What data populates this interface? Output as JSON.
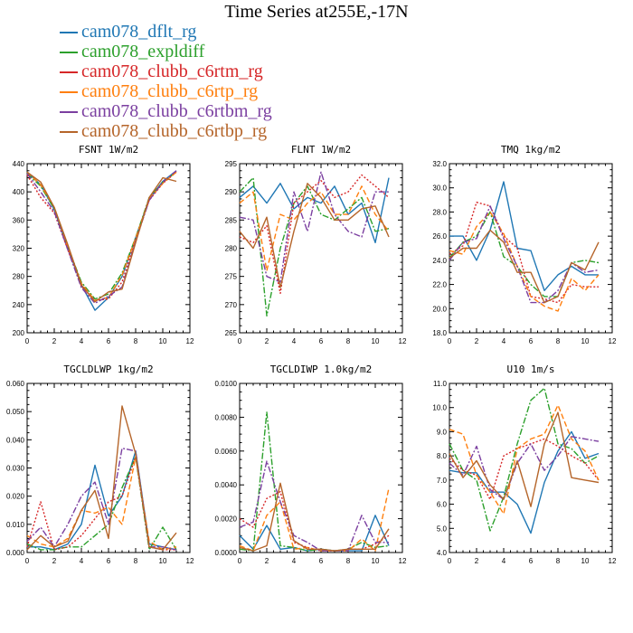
{
  "title": "Time Series at255E,-17N",
  "legend": [
    {
      "name": "cam078_dflt_rg",
      "color": "#1f77b4",
      "dash": "solid"
    },
    {
      "name": "cam078_expldiff",
      "color": "#2ca02c",
      "dash": "dashdot"
    },
    {
      "name": "cam078_clubb_c6rtm_rg",
      "color": "#d62728",
      "dash": "dot"
    },
    {
      "name": "cam078_clubb_c6rtp_rg",
      "color": "#ff7f0e",
      "dash": "dash"
    },
    {
      "name": "cam078_clubb_c6rtbm_rg",
      "color": "#7b3fa0",
      "dash": "dashdot"
    },
    {
      "name": "cam078_clubb_c6rtbp_rg",
      "color": "#b5652a",
      "dash": "solid"
    }
  ],
  "chart_data": [
    {
      "type": "line",
      "title": "FSNT   1W/m2",
      "xlim": [
        0,
        12
      ],
      "ylim": [
        200,
        440
      ],
      "xticks": [
        "0",
        "2",
        "4",
        "6",
        "8",
        "10",
        "12"
      ],
      "yticks": [
        "200",
        "240",
        "280",
        "320",
        "360",
        "400",
        "440"
      ],
      "x": [
        0,
        1,
        2,
        3,
        4,
        5,
        6,
        7,
        8,
        9,
        10,
        11
      ],
      "series": [
        {
          "name": "cam078_dflt_rg",
          "values": [
            428,
            410,
            375,
            320,
            268,
            232,
            250,
            280,
            335,
            390,
            415,
            430
          ]
        },
        {
          "name": "cam078_expldiff",
          "values": [
            426,
            408,
            376,
            322,
            272,
            248,
            255,
            285,
            335,
            392,
            414,
            428
          ]
        },
        {
          "name": "cam078_clubb_c6rtm_rg",
          "values": [
            424,
            392,
            370,
            318,
            266,
            246,
            248,
            272,
            332,
            388,
            412,
            428
          ]
        },
        {
          "name": "cam078_clubb_c6rtp_rg",
          "values": [
            428,
            410,
            378,
            322,
            270,
            246,
            250,
            282,
            334,
            390,
            412,
            428
          ]
        },
        {
          "name": "cam078_clubb_c6rtbm_rg",
          "values": [
            426,
            400,
            372,
            318,
            264,
            242,
            252,
            265,
            330,
            388,
            414,
            430
          ]
        },
        {
          "name": "cam078_clubb_c6rtbp_rg",
          "values": [
            428,
            414,
            378,
            325,
            268,
            244,
            258,
            262,
            328,
            392,
            420,
            415
          ]
        }
      ]
    },
    {
      "type": "line",
      "title": "FLNT   1W/m2",
      "xlim": [
        0,
        12
      ],
      "ylim": [
        265,
        295
      ],
      "xticks": [
        "0",
        "2",
        "4",
        "6",
        "8",
        "10",
        "12"
      ],
      "yticks": [
        "265",
        "270",
        "275",
        "280",
        "285",
        "290",
        "295"
      ],
      "x": [
        0,
        1,
        2,
        3,
        4,
        5,
        6,
        7,
        8,
        9,
        10,
        11
      ],
      "series": [
        {
          "name": "cam078_dflt_rg",
          "values": [
            289,
            291,
            288,
            291.5,
            287,
            289,
            288,
            291,
            286,
            288,
            281,
            292.5
          ]
        },
        {
          "name": "cam078_expldiff",
          "values": [
            290,
            292.5,
            268,
            280,
            288,
            291,
            286,
            285,
            287,
            289,
            283,
            283.5
          ]
        },
        {
          "name": "cam078_clubb_c6rtm_rg",
          "values": [
            282,
            281,
            284,
            272,
            288,
            290,
            292,
            289,
            290,
            293,
            291,
            289
          ]
        },
        {
          "name": "cam078_clubb_c6rtp_rg",
          "values": [
            288,
            290,
            276,
            286,
            285,
            288,
            290,
            286,
            286,
            291,
            286,
            283
          ]
        },
        {
          "name": "cam078_clubb_c6rtbm_rg",
          "values": [
            285.5,
            285,
            275,
            274,
            290,
            283,
            293.5,
            286,
            283,
            282,
            290,
            290
          ]
        },
        {
          "name": "cam078_clubb_c6rtbp_rg",
          "values": [
            283,
            280,
            285.5,
            273,
            283,
            291.5,
            289,
            285,
            285,
            287,
            287.5,
            282
          ]
        }
      ]
    },
    {
      "type": "line",
      "title": "TMQ   1kg/m2",
      "xlim": [
        0,
        12
      ],
      "ylim": [
        18.0,
        32.0
      ],
      "xticks": [
        "0",
        "2",
        "4",
        "6",
        "8",
        "10",
        "12"
      ],
      "yticks": [
        "18.0",
        "20.0",
        "22.0",
        "24.0",
        "26.0",
        "28.0",
        "30.0",
        "32.0"
      ],
      "x": [
        0,
        1,
        2,
        3,
        4,
        5,
        6,
        7,
        8,
        9,
        10,
        11
      ],
      "series": [
        {
          "name": "cam078_dflt_rg",
          "values": [
            26.0,
            26.0,
            24.0,
            26.5,
            30.5,
            25.0,
            24.8,
            21.5,
            22.8,
            23.5,
            22.8,
            22.8
          ]
        },
        {
          "name": "cam078_expldiff",
          "values": [
            24.2,
            25.5,
            26.0,
            28.0,
            24.3,
            23.5,
            22.0,
            21.0,
            21.0,
            23.8,
            24.0,
            23.8
          ]
        },
        {
          "name": "cam078_clubb_c6rtm_rg",
          "values": [
            24.5,
            25.2,
            28.8,
            28.5,
            26.0,
            25.0,
            21.0,
            20.8,
            20.5,
            22.0,
            21.8,
            21.8
          ]
        },
        {
          "name": "cam078_clubb_c6rtp_rg",
          "values": [
            24.8,
            24.5,
            26.8,
            28.0,
            26.2,
            23.5,
            21.0,
            20.2,
            19.8,
            22.5,
            21.5,
            22.8
          ]
        },
        {
          "name": "cam078_clubb_c6rtbm_rg",
          "values": [
            24.0,
            25.5,
            25.8,
            28.5,
            25.8,
            23.5,
            20.5,
            20.5,
            21.5,
            23.8,
            23.0,
            23.2
          ]
        },
        {
          "name": "cam078_clubb_c6rtbp_rg",
          "values": [
            24.2,
            25.0,
            25.0,
            26.5,
            25.5,
            23.0,
            23.0,
            20.5,
            21.0,
            23.8,
            23.2,
            25.5
          ]
        }
      ]
    },
    {
      "type": "line",
      "title": "TGCLDLWP   1kg/m2",
      "xlim": [
        0,
        12
      ],
      "ylim": [
        0.0,
        0.06
      ],
      "xticks": [
        "0",
        "2",
        "4",
        "6",
        "8",
        "10",
        "12"
      ],
      "yticks": [
        "0.000",
        "0.010",
        "0.020",
        "0.030",
        "0.040",
        "0.050",
        "0.060"
      ],
      "x": [
        0,
        1,
        2,
        3,
        4,
        5,
        6,
        7,
        8,
        9,
        10,
        11
      ],
      "series": [
        {
          "name": "cam078_dflt_rg",
          "values": [
            0.002,
            0.002,
            0.001,
            0.003,
            0.01,
            0.031,
            0.013,
            0.02,
            0.036,
            0.003,
            0.002,
            0.001
          ]
        },
        {
          "name": "cam078_expldiff",
          "values": [
            0.003,
            0.001,
            0.001,
            0.002,
            0.002,
            0.006,
            0.01,
            0.023,
            0.034,
            0.001,
            0.009,
            0.001
          ]
        },
        {
          "name": "cam078_clubb_c6rtm_rg",
          "values": [
            0.002,
            0.018,
            0.001,
            0.002,
            0.006,
            0.012,
            0.018,
            0.02,
            0.034,
            0.002,
            0.001,
            0.001
          ]
        },
        {
          "name": "cam078_clubb_c6rtp_rg",
          "values": [
            0.006,
            0.003,
            0.002,
            0.005,
            0.015,
            0.014,
            0.016,
            0.01,
            0.034,
            0.004,
            0.001,
            0.002
          ]
        },
        {
          "name": "cam078_clubb_c6rtbm_rg",
          "values": [
            0.004,
            0.009,
            0.002,
            0.01,
            0.02,
            0.025,
            0.01,
            0.037,
            0.036,
            0.002,
            0.002,
            0.001
          ]
        },
        {
          "name": "cam078_clubb_c6rtbp_rg",
          "values": [
            0.001,
            0.006,
            0.002,
            0.004,
            0.015,
            0.022,
            0.005,
            0.052,
            0.035,
            0.002,
            0.001,
            0.007
          ]
        }
      ]
    },
    {
      "type": "line",
      "title": "TGCLDIWP   1.0kg/m2",
      "xlim": [
        0,
        12
      ],
      "ylim": [
        0.0,
        0.01
      ],
      "xticks": [
        "0",
        "2",
        "4",
        "6",
        "8",
        "10",
        "12"
      ],
      "yticks": [
        "0.0000",
        "0.0020",
        "0.0040",
        "0.0060",
        "0.0080",
        "0.0100"
      ],
      "x": [
        0,
        1,
        2,
        3,
        4,
        5,
        6,
        7,
        8,
        9,
        10,
        11
      ],
      "series": [
        {
          "name": "cam078_dflt_rg",
          "values": [
            0.001,
            0.0002,
            0.0016,
            0.0002,
            0.0003,
            0.0001,
            0.0002,
            0.0001,
            0.0001,
            0.0001,
            0.0022,
            0.0004
          ]
        },
        {
          "name": "cam078_expldiff",
          "values": [
            0.0002,
            0.0001,
            0.0083,
            0.0004,
            0.0003,
            0.0001,
            0.0002,
            0.0001,
            0.0002,
            0.0006,
            0.0003,
            0.0004
          ]
        },
        {
          "name": "cam078_clubb_c6rtm_rg",
          "values": [
            0.002,
            0.0015,
            0.0032,
            0.0036,
            0.0006,
            0.0003,
            0.0001,
            0.0001,
            0.0002,
            0.0002,
            0.0005,
            0.001
          ]
        },
        {
          "name": "cam078_clubb_c6rtp_rg",
          "values": [
            0.0004,
            0.0001,
            0.0022,
            0.003,
            0.0002,
            0.0003,
            0.0001,
            0.0001,
            0.0001,
            0.0008,
            0.0001,
            0.0038
          ]
        },
        {
          "name": "cam078_clubb_c6rtbm_rg",
          "values": [
            0.0015,
            0.0018,
            0.0054,
            0.003,
            0.001,
            0.0006,
            0.0001,
            0.0001,
            0.0001,
            0.0022,
            0.0006,
            0.0006
          ]
        },
        {
          "name": "cam078_clubb_c6rtbp_rg",
          "values": [
            0.0003,
            0.0001,
            0.0004,
            0.0041,
            0.0007,
            0.0002,
            0.0002,
            0.0001,
            0.0002,
            0.0002,
            0.0002,
            0.0014
          ]
        }
      ]
    },
    {
      "type": "line",
      "title": "U10   1m/s",
      "xlim": [
        0,
        12
      ],
      "ylim": [
        4.0,
        11.0
      ],
      "xticks": [
        "0",
        "2",
        "4",
        "6",
        "8",
        "10",
        "12"
      ],
      "yticks": [
        "4.0",
        "5.0",
        "6.0",
        "7.0",
        "8.0",
        "9.0",
        "10.0",
        "11.0"
      ],
      "x": [
        0,
        1,
        2,
        3,
        4,
        5,
        6,
        7,
        8,
        9,
        10,
        11
      ],
      "series": [
        {
          "name": "cam078_dflt_rg",
          "values": [
            7.4,
            7.3,
            7.3,
            6.5,
            6.5,
            6.0,
            4.8,
            6.9,
            8.2,
            9.0,
            7.9,
            8.1
          ]
        },
        {
          "name": "cam078_expldiff",
          "values": [
            8.5,
            7.4,
            7.0,
            4.9,
            6.3,
            8.5,
            10.3,
            10.8,
            8.5,
            8.3,
            7.7,
            8.0
          ]
        },
        {
          "name": "cam078_clubb_c6rtm_rg",
          "values": [
            7.9,
            7.4,
            7.2,
            6.2,
            8.0,
            8.3,
            8.5,
            8.7,
            8.4,
            8.0,
            7.7,
            7.0
          ]
        },
        {
          "name": "cam078_clubb_c6rtp_rg",
          "values": [
            9.1,
            8.9,
            7.2,
            6.5,
            5.6,
            8.3,
            8.7,
            8.9,
            10.1,
            8.7,
            8.2,
            7.0
          ]
        },
        {
          "name": "cam078_clubb_c6rtbm_rg",
          "values": [
            7.7,
            7.2,
            8.4,
            6.6,
            6.2,
            7.7,
            8.5,
            7.4,
            8.0,
            8.8,
            8.7,
            8.6
          ]
        },
        {
          "name": "cam078_clubb_c6rtbp_rg",
          "values": [
            8.1,
            7.1,
            7.8,
            6.8,
            6.2,
            7.8,
            5.9,
            8.5,
            9.8,
            7.1,
            7.0,
            6.9
          ]
        }
      ]
    }
  ]
}
